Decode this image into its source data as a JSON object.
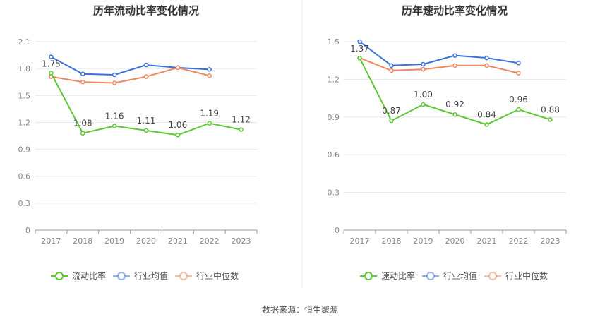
{
  "colors": {
    "main": "#5cc832",
    "avg": "#3b72d9",
    "median": "#f0875f"
  },
  "source": "数据来源：恒生聚源",
  "chart_data": [
    {
      "type": "line",
      "title": "历年流动比率变化情况",
      "categories": [
        "2017",
        "2018",
        "2019",
        "2020",
        "2021",
        "2022",
        "2023"
      ],
      "yticks": [
        "0",
        "0.3",
        "0.6",
        "0.9",
        "1.2",
        "1.5",
        "1.8",
        "2.1"
      ],
      "ylim": [
        0,
        2.1
      ],
      "grid": true,
      "legend_position": "bottom",
      "series": [
        {
          "name": "流动比率",
          "role": "main",
          "values": [
            1.75,
            1.08,
            1.16,
            1.11,
            1.06,
            1.19,
            1.12
          ],
          "labels": [
            "1.75",
            "1.08",
            "1.16",
            "1.11",
            "1.06",
            "1.19",
            "1.12"
          ]
        },
        {
          "name": "行业均值",
          "role": "avg",
          "values": [
            1.93,
            1.74,
            1.73,
            1.84,
            1.81,
            1.79,
            null
          ]
        },
        {
          "name": "行业中位数",
          "role": "median",
          "values": [
            1.71,
            1.65,
            1.64,
            1.71,
            1.81,
            1.72,
            null
          ]
        }
      ]
    },
    {
      "type": "line",
      "title": "历年速动比率变化情况",
      "categories": [
        "2017",
        "2018",
        "2019",
        "2020",
        "2021",
        "2022",
        "2023"
      ],
      "yticks": [
        "0",
        "0.3",
        "0.6",
        "0.9",
        "1.2",
        "1.5"
      ],
      "ylim": [
        0,
        1.5
      ],
      "grid": true,
      "legend_position": "bottom",
      "series": [
        {
          "name": "速动比率",
          "role": "main",
          "values": [
            1.37,
            0.87,
            1.0,
            0.92,
            0.84,
            0.96,
            0.88
          ],
          "labels": [
            "1.37",
            "0.87",
            "1.00",
            "0.92",
            "0.84",
            "0.96",
            "0.88"
          ]
        },
        {
          "name": "行业均值",
          "role": "avg",
          "values": [
            1.5,
            1.31,
            1.32,
            1.39,
            1.37,
            1.33,
            null
          ]
        },
        {
          "name": "行业中位数",
          "role": "median",
          "values": [
            1.37,
            1.27,
            1.28,
            1.31,
            1.31,
            1.25,
            null
          ]
        }
      ]
    }
  ]
}
